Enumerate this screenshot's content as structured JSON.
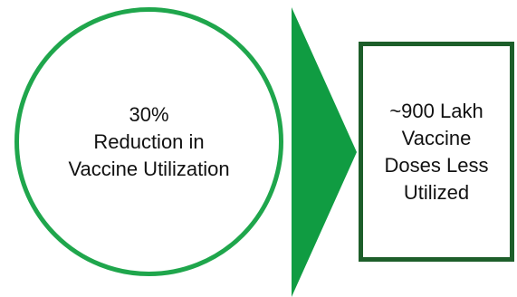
{
  "circle": {
    "lines": [
      "30%",
      "Reduction in",
      "Vaccine Utilization"
    ],
    "border_color": "#1fa64c"
  },
  "arrow": {
    "color": "#109c42"
  },
  "box": {
    "lines": [
      "~900 Lakh",
      "Vaccine",
      "Doses Less",
      "Utilized"
    ],
    "border_color": "#1d5e2a"
  }
}
